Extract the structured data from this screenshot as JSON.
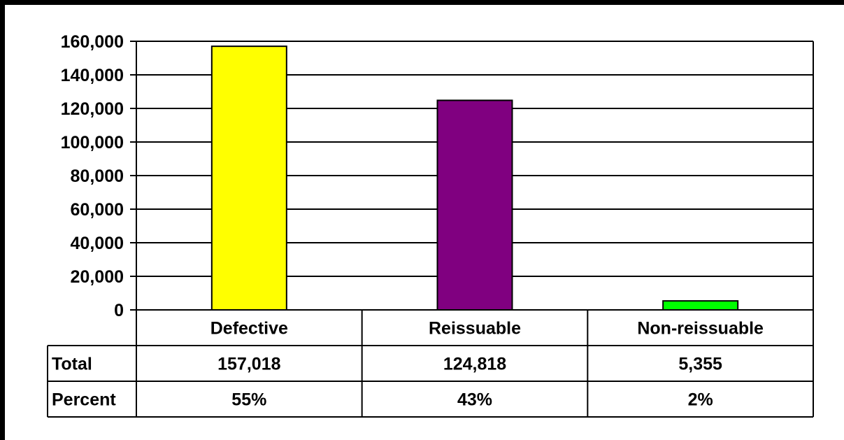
{
  "chart_data": {
    "type": "bar",
    "title": "",
    "xlabel": "",
    "ylabel": "",
    "categories": [
      "Defective",
      "Reissuable",
      "Non-reissuable"
    ],
    "values": [
      157018,
      124818,
      5355
    ],
    "ylim": [
      0,
      160000
    ],
    "yticks": [
      0,
      20000,
      40000,
      60000,
      80000,
      100000,
      120000,
      140000,
      160000
    ],
    "ytick_labels": [
      "0",
      "20,000",
      "40,000",
      "60,000",
      "80,000",
      "100,000",
      "120,000",
      "140,000",
      "160,000"
    ],
    "bar_colors": [
      "#ffff00",
      "#800080",
      "#00ff00"
    ],
    "grid": true,
    "legend": "none",
    "data_table": {
      "rows": [
        {
          "label": "Total",
          "cells": [
            "157,018",
            "124,818",
            "5,355"
          ]
        },
        {
          "label": "Percent",
          "cells": [
            "55%",
            "43%",
            "2%"
          ]
        }
      ]
    }
  }
}
